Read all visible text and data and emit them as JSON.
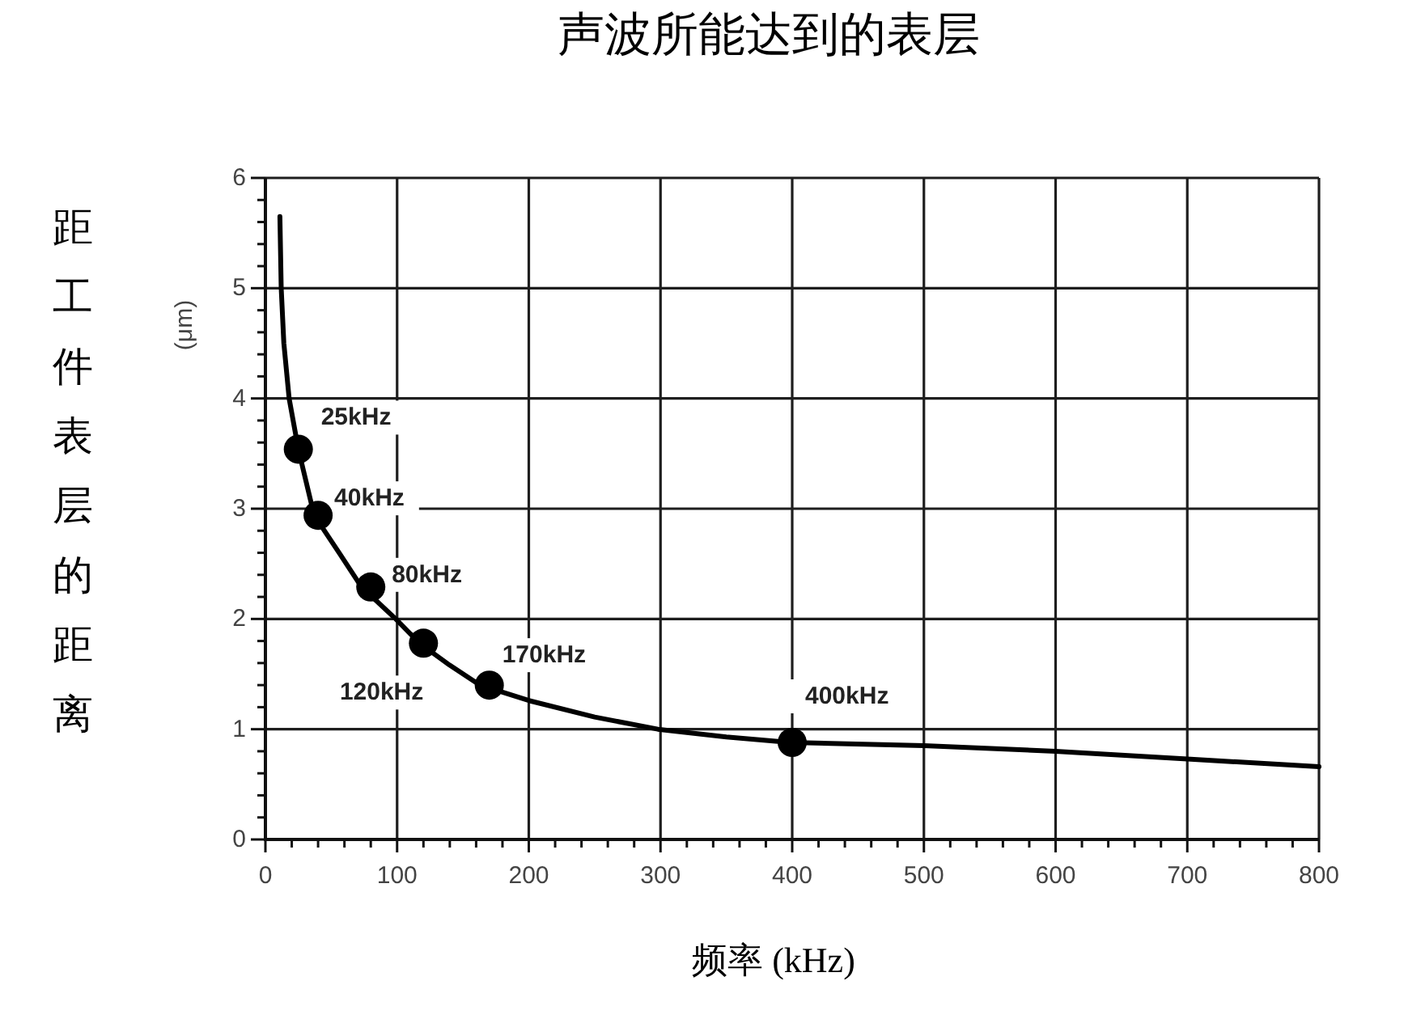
{
  "chart_data": {
    "type": "line",
    "title": "声波所能达到的表层",
    "xlabel": "频率 (kHz)",
    "ylabel": "距工件表层的距离",
    "xlim": [
      0,
      800
    ],
    "ylim": [
      0,
      6
    ],
    "xticks": [
      0,
      {
        "value": 20,
        "label": null
      },
      {
        "value": 40,
        "label": null
      },
      {
        "value": 60,
        "label": null
      },
      {
        "value": 80,
        "label": null
      },
      100,
      {
        "value": 120,
        "label": null
      },
      {
        "value": 140,
        "label": null
      },
      {
        "value": 160,
        "label": null
      },
      {
        "value": 180,
        "label": null
      },
      200,
      {
        "value": 220,
        "label": null
      },
      {
        "value": 240,
        "label": null
      },
      {
        "value": 260,
        "label": null
      },
      {
        "value": 280,
        "label": null
      },
      300,
      {
        "value": 320,
        "label": null
      },
      {
        "value": 340,
        "label": null
      },
      {
        "value": 360,
        "label": null
      },
      {
        "value": 380,
        "label": null
      },
      400,
      {
        "value": 420,
        "label": null
      },
      {
        "value": 440,
        "label": null
      },
      {
        "value": 460,
        "label": null
      },
      {
        "value": 480,
        "label": null
      },
      500,
      {
        "value": 520,
        "label": null
      },
      {
        "value": 540,
        "label": null
      },
      {
        "value": 560,
        "label": null
      },
      {
        "value": 580,
        "label": null
      },
      600,
      {
        "value": 620,
        "label": null
      },
      {
        "value": 640,
        "label": null
      },
      {
        "value": 660,
        "label": null
      },
      {
        "value": 680,
        "label": null
      },
      700,
      {
        "value": 720,
        "label": null
      },
      {
        "value": 740,
        "label": null
      },
      {
        "value": 760,
        "label": null
      },
      {
        "value": 780,
        "label": null
      },
      800
    ],
    "yticks": [
      0,
      {
        "value": 0.2,
        "label": null
      },
      {
        "value": 0.4,
        "label": null
      },
      {
        "value": 0.6,
        "label": null
      },
      {
        "value": 0.8,
        "label": null
      },
      1,
      {
        "value": 1.2,
        "label": null
      },
      {
        "value": 1.4,
        "label": null
      },
      {
        "value": 1.6,
        "label": null
      },
      {
        "value": 1.8,
        "label": null
      },
      2,
      {
        "value": 2.2,
        "label": null
      },
      {
        "value": 2.4,
        "label": null
      },
      {
        "value": 2.6,
        "label": null
      },
      {
        "value": 2.8,
        "label": null
      },
      3,
      {
        "value": 3.2,
        "label": null
      },
      {
        "value": 3.4,
        "label": null
      },
      {
        "value": 3.6,
        "label": null
      },
      {
        "value": 3.8,
        "label": null
      },
      4,
      {
        "value": 4.2,
        "label": null
      },
      {
        "value": 4.4,
        "label": null
      },
      {
        "value": 4.6,
        "label": null
      },
      {
        "value": 4.8,
        "label": null
      },
      5,
      {
        "value": 5.2,
        "label": null
      },
      {
        "value": 5.4,
        "label": null
      },
      {
        "value": 5.6,
        "label": null
      },
      {
        "value": 5.8,
        "label": null
      },
      6
    ],
    "grid": true,
    "series": [
      {
        "color": "#000000",
        "x": [
          11,
          12,
          14,
          18,
          25,
          37,
          56,
          73,
          99,
          117,
          140,
          163,
          200,
          250,
          298,
          350,
          398,
          500,
          600,
          700,
          800
        ],
        "values": [
          5.65,
          5.0,
          4.5,
          4.0,
          3.54,
          2.94,
          2.6,
          2.29,
          2.0,
          1.78,
          1.58,
          1.4,
          1.26,
          1.11,
          1.0,
          0.93,
          0.88,
          0.85,
          0.8,
          0.73,
          0.66
        ]
      },
      {
        "type": "scatter",
        "color": "#000000",
        "x": [
          25,
          40,
          80,
          120,
          170,
          400
        ],
        "values": [
          3.54,
          2.94,
          2.29,
          1.78,
          1.4,
          0.88
        ]
      }
    ],
    "annotations": [
      {
        "text": "25kHz",
        "x": 25,
        "y": 3.54
      },
      {
        "text": "40kHz",
        "x": 40,
        "y": 2.94
      },
      {
        "text": "80kHz",
        "x": 80,
        "y": 2.29
      },
      {
        "text": "120kHz",
        "x": 120,
        "y": 1.78
      },
      {
        "text": "170kHz",
        "x": 170,
        "y": 1.4
      },
      {
        "text": "400kHz",
        "x": 400,
        "y": 0.88
      },
      "(μm)"
    ]
  }
}
